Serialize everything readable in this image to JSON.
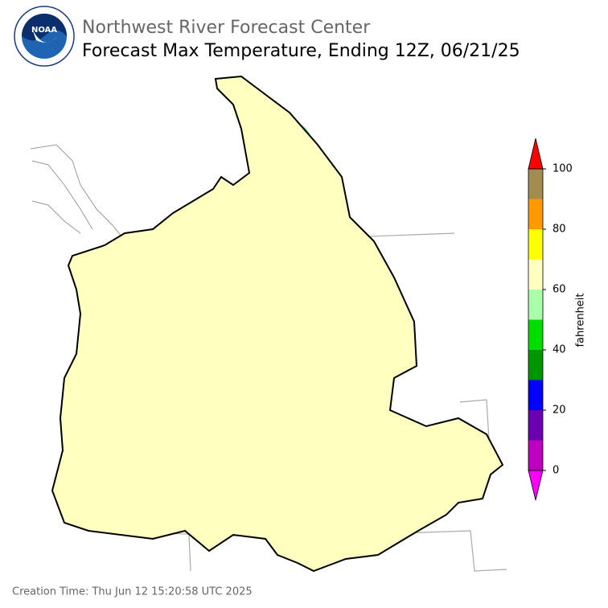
{
  "header": {
    "organization": "Northwest River Forecast Center",
    "title": "Forecast Max Temperature, Ending 12Z, 06/21/25",
    "logo_text": "NOAA"
  },
  "colorbar": {
    "label": "fahrenheit",
    "bounds": [
      0,
      10,
      20,
      30,
      40,
      50,
      60,
      70,
      80,
      90,
      100
    ],
    "colors": [
      "#c000c0",
      "#6a00b0",
      "#0000ff",
      "#009600",
      "#00dd00",
      "#aaffaa",
      "#ffffc0",
      "#ffff00",
      "#ff9900",
      "#a38c50"
    ],
    "under_color": "#ff00ff",
    "over_color": "#ff0000",
    "ticks": [
      0,
      20,
      40,
      60,
      80,
      100
    ]
  },
  "footer": {
    "creation_time": "Creation Time: Thu Jun 12 15:20:58 UTC 2025"
  }
}
